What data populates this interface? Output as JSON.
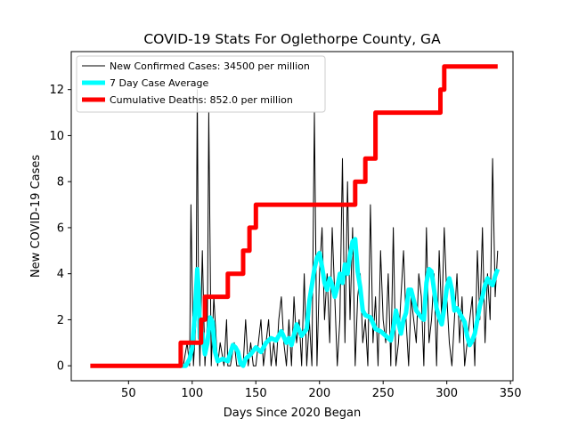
{
  "chart_data": {
    "type": "line",
    "title": "COVID-19 Stats For Oglethorpe County, GA",
    "xlabel": "Days Since 2020 Began",
    "ylabel": "New COVID-19 Cases",
    "xlim": [
      5,
      352
    ],
    "ylim": [
      -0.65,
      13.65
    ],
    "xticks": [
      50,
      100,
      150,
      200,
      250,
      300,
      350
    ],
    "yticks": [
      0,
      2,
      4,
      6,
      8,
      10,
      12
    ],
    "grid": false,
    "legend_position": "top-left",
    "series": [
      {
        "name": "New Confirmed Cases: 34500 per million",
        "color": "#000000",
        "style": "thin",
        "x": [
          90,
          93,
          96,
          98,
          99,
          101,
          103,
          104,
          105,
          106,
          108,
          110,
          112,
          113,
          115,
          117,
          120,
          122,
          125,
          127,
          128,
          130,
          133,
          135,
          138,
          140,
          142,
          144,
          146,
          148,
          150,
          152,
          154,
          156,
          158,
          160,
          162,
          164,
          166,
          168,
          170,
          172,
          174,
          176,
          178,
          180,
          182,
          184,
          186,
          188,
          190,
          192,
          194,
          196,
          198,
          200,
          202,
          204,
          206,
          208,
          210,
          212,
          214,
          216,
          218,
          220,
          222,
          224,
          226,
          228,
          230,
          232,
          234,
          236,
          238,
          240,
          242,
          244,
          246,
          248,
          250,
          252,
          254,
          256,
          258,
          260,
          262,
          264,
          266,
          268,
          270,
          272,
          274,
          276,
          278,
          280,
          282,
          284,
          286,
          288,
          290,
          292,
          294,
          296,
          298,
          300,
          302,
          304,
          306,
          308,
          310,
          312,
          314,
          316,
          318,
          320,
          322,
          324,
          326,
          328,
          330,
          332,
          334,
          336,
          338,
          340
        ],
        "y": [
          0,
          0,
          1,
          0,
          7,
          0,
          2,
          12,
          3,
          0,
          5,
          0,
          2,
          11,
          0,
          3,
          0,
          1,
          0,
          2,
          0,
          0,
          1,
          0,
          0,
          0,
          2,
          0,
          1,
          0,
          0,
          1,
          2,
          0,
          1,
          2,
          0,
          1,
          0,
          2,
          3,
          1,
          0,
          2,
          0,
          3,
          1,
          2,
          0,
          4,
          0,
          2,
          0,
          11,
          0,
          4,
          6,
          2,
          4,
          1,
          6,
          3,
          0,
          2,
          9,
          1,
          8,
          2,
          6,
          0,
          3,
          4,
          1,
          2,
          0,
          7,
          1,
          3,
          0,
          5,
          2,
          1,
          4,
          0,
          6,
          0,
          1,
          3,
          5,
          2,
          0,
          3,
          2,
          1,
          4,
          3,
          0,
          6,
          1,
          2,
          4,
          0,
          5,
          2,
          6,
          3,
          1,
          0,
          2,
          4,
          1,
          3,
          0,
          1,
          2,
          3,
          0,
          5,
          2,
          6,
          1,
          4,
          2,
          9,
          3,
          5
        ]
      },
      {
        "name": "7 Day Case Average",
        "color": "#00ffff",
        "style": "thick",
        "x": [
          90,
          95,
          98,
          100,
          102,
          104,
          105,
          106,
          108,
          110,
          112,
          114,
          116,
          118,
          120,
          124,
          128,
          132,
          134,
          136,
          138,
          140,
          142,
          146,
          150,
          154,
          158,
          162,
          166,
          170,
          174,
          176,
          178,
          182,
          186,
          190,
          192,
          194,
          196,
          198,
          200,
          202,
          204,
          206,
          208,
          210,
          212,
          214,
          216,
          218,
          220,
          222,
          224,
          226,
          228,
          230,
          232,
          234,
          236,
          240,
          244,
          248,
          252,
          256,
          258,
          260,
          264,
          266,
          268,
          270,
          272,
          276,
          280,
          282,
          284,
          286,
          288,
          290,
          292,
          294,
          296,
          298,
          300,
          302,
          304,
          306,
          308,
          310,
          312,
          314,
          316,
          318,
          320,
          322,
          324,
          326,
          328,
          330,
          332,
          334,
          336,
          338,
          340
        ],
        "y": [
          0,
          0,
          0.3,
          0.8,
          2.2,
          4.2,
          3.4,
          1.2,
          1.4,
          0.5,
          1.0,
          2.1,
          1.9,
          0.6,
          0.2,
          0.3,
          0.2,
          0.9,
          0.8,
          0.6,
          0.1,
          0,
          0.3,
          0.5,
          0.8,
          0.6,
          1.0,
          1.2,
          1.1,
          1.5,
          1.0,
          1.2,
          0.9,
          1.8,
          1.3,
          1.6,
          2.8,
          3.5,
          4.2,
          4.7,
          4.9,
          4.3,
          3.6,
          3.3,
          3.8,
          3.5,
          3.0,
          3.4,
          4.0,
          3.6,
          4.4,
          4.0,
          4.8,
          5.4,
          5.5,
          4.1,
          3.4,
          2.4,
          2.2,
          2.1,
          1.6,
          1.5,
          1.3,
          1.1,
          1.6,
          2.4,
          1.4,
          2.0,
          2.3,
          3.3,
          3.3,
          2.4,
          2.1,
          2.0,
          3.6,
          4.2,
          4.1,
          3.3,
          2.5,
          2.1,
          1.8,
          2.5,
          3.4,
          3.8,
          3.3,
          2.4,
          2.5,
          2.3,
          2.1,
          1.9,
          1.3,
          0.9,
          1.1,
          1.4,
          2.0,
          2.6,
          3.0,
          3.5,
          3.8,
          3.6,
          3.5,
          3.9,
          4.2
        ]
      },
      {
        "name": "Cumulative Deaths: 852.0 per million",
        "color": "#ff0000",
        "style": "thick",
        "x": [
          20,
          91,
          91,
          107,
          107,
          110,
          110,
          123,
          123,
          128,
          128,
          140,
          140,
          145,
          145,
          150,
          150,
          226,
          226,
          228,
          228,
          236,
          236,
          238,
          238,
          244,
          244,
          295,
          295,
          296,
          296,
          298,
          298,
          340
        ],
        "y": [
          0,
          0,
          1,
          1,
          2,
          2,
          3,
          3,
          3,
          3,
          4,
          4,
          5,
          5,
          6,
          6,
          7,
          7,
          7,
          7,
          8,
          8,
          9,
          9,
          9,
          9,
          11,
          11,
          12,
          12,
          12,
          12,
          13,
          13
        ]
      }
    ]
  }
}
